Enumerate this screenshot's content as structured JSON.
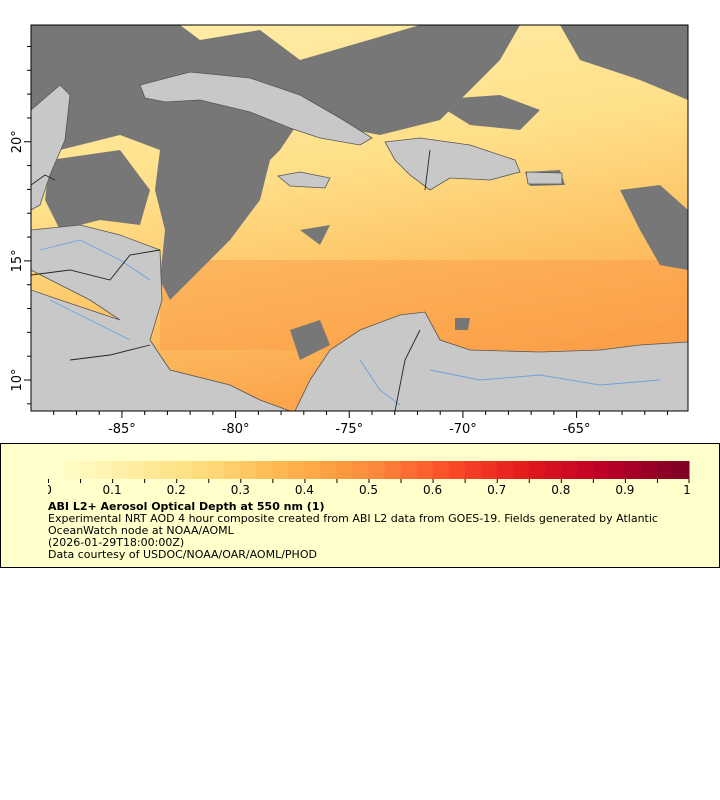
{
  "map": {
    "lon_ticks": [
      "-85°",
      "-80°",
      "-75°",
      "-70°",
      "-65°"
    ],
    "lat_ticks": [
      "20°",
      "15°",
      "10°"
    ],
    "lon_range": [
      -89,
      -60.1
    ],
    "lat_range": [
      8.7,
      24.9
    ],
    "colors": {
      "land": "#c8c8c8",
      "no_data": "#777777",
      "coast": "#555555",
      "rivers": "#6ca0dc",
      "border": "#222222"
    }
  },
  "legend": {
    "colorbar": {
      "min": 0,
      "max": 1,
      "steps": 40,
      "palette": "YlOrRd",
      "tick_labels": [
        "0",
        "0.1",
        "0.2",
        "0.3",
        "0.4",
        "0.5",
        "0.6",
        "0.7",
        "0.8",
        "0.9",
        "1"
      ]
    },
    "title": "ABI L2+ Aerosol Optical Depth at 550 nm (1)",
    "line1": "Experimental NRT AOD 4 hour composite created from ABI L2 data from GOES-19. Fields generated by Atlantic OceanWatch node at NOAA/AOML",
    "line2": "(2026-01-29T18:00:00Z)",
    "line3": "Data courtesy of USDOC/NOAA/OAR/AOML/PHOD"
  }
}
